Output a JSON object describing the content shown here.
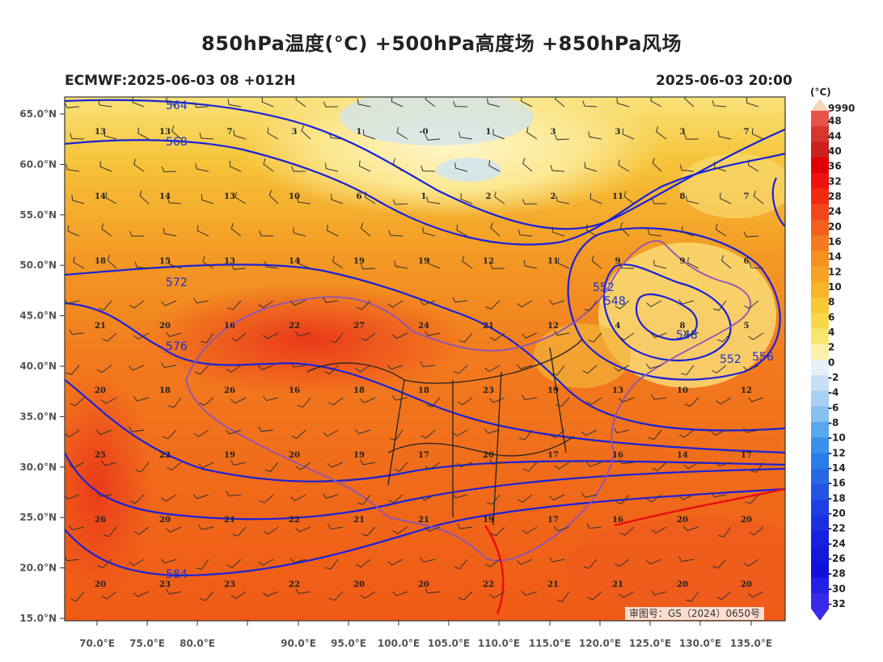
{
  "header": {
    "title": "850hPa温度(°C) +500hPa高度场 +850hPa风场",
    "model_run": "ECMWF:2025-06-03 08 +012H",
    "valid_time": "2025-06-03 20:00"
  },
  "map": {
    "lat_labels": [
      "65.0°N",
      "60.0°N",
      "55.0°N",
      "50.0°N",
      "45.0°N",
      "40.0°N",
      "35.0°N",
      "30.0°N",
      "25.0°N",
      "20.0°N",
      "15.0°N"
    ],
    "lon_labels": [
      "70.0°E",
      "75.0°E",
      "80.0°E",
      "90.0°E",
      "95.0°E",
      "100.0°E",
      "105.0°E",
      "110.0°E",
      "115.0°E",
      "120.0°E",
      "125.0°E",
      "130.0°E",
      "135.0°E"
    ],
    "contour_labels": [
      "564",
      "568",
      "572",
      "576",
      "584",
      "552",
      "548",
      "548",
      "552",
      "556"
    ],
    "temperature_values": [
      [
        "13",
        "13",
        "7",
        "3",
        "1",
        "-0",
        "1",
        "3",
        "3",
        "3",
        "7"
      ],
      [
        "14",
        "14",
        "13",
        "10",
        "6",
        "1",
        "2",
        "2",
        "11",
        "8",
        "7"
      ],
      [
        "18",
        "15",
        "13",
        "14",
        "19",
        "19",
        "12",
        "11",
        "9",
        "9",
        "6"
      ],
      [
        "21",
        "20",
        "16",
        "22",
        "27",
        "24",
        "21",
        "12",
        "4",
        "8",
        "5"
      ],
      [
        "20",
        "18",
        "26",
        "16",
        "18",
        "18",
        "23",
        "19",
        "13",
        "10",
        "12"
      ],
      [
        "25",
        "22",
        "19",
        "20",
        "19",
        "17",
        "20",
        "17",
        "16",
        "14",
        "17"
      ],
      [
        "26",
        "20",
        "21",
        "22",
        "21",
        "21",
        "19",
        "17",
        "16",
        "20",
        "20"
      ],
      [
        "20",
        "23",
        "23",
        "22",
        "20",
        "20",
        "22",
        "21",
        "21",
        "20",
        "20"
      ]
    ],
    "approval_number": "审图号：GS（2024）0650号"
  },
  "colorbar": {
    "unit": "(°C)",
    "top_label": "9990",
    "labels": [
      "48",
      "44",
      "40",
      "36",
      "32",
      "28",
      "24",
      "20",
      "16",
      "14",
      "12",
      "10",
      "8",
      "6",
      "4",
      "2",
      "0",
      "-2",
      "-4",
      "-6",
      "-8",
      "-10",
      "-12",
      "-14",
      "-16",
      "-18",
      "-20",
      "-22",
      "-24",
      "-26",
      "-28",
      "-30",
      "-32"
    ],
    "colors": [
      "#e8524a",
      "#d9362e",
      "#cc1f1f",
      "#e00000",
      "#f01010",
      "#f22a10",
      "#f5461a",
      "#f2601c",
      "#f57a22",
      "#f6901e",
      "#f7a326",
      "#f7b52a",
      "#f7c832",
      "#f8d84a",
      "#f9e66e",
      "#faf0a8",
      "#e6f0fa",
      "#c8e0f6",
      "#a8d0f2",
      "#88c0ee",
      "#5aa8ec",
      "#3a90ea",
      "#2a7ce8",
      "#2668e6",
      "#2254e4",
      "#1e40e2",
      "#1a30e0",
      "#1620de",
      "#1218dc",
      "#1010da",
      "#2020e6",
      "#3a2ae8"
    ]
  }
}
